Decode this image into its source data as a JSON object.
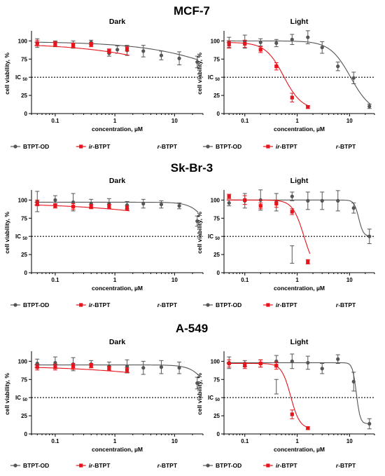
{
  "figure": {
    "rows": [
      {
        "cell_line": "MCF-7"
      },
      {
        "cell_line": "Sk-Br-3"
      },
      {
        "cell_line": "A-549"
      }
    ]
  },
  "colors": {
    "btpt_od": "#555555",
    "ir_btpt": "#e8131b",
    "axis": "#000000"
  },
  "legend": [
    {
      "prefix": "",
      "suffix": "BTPT-OD",
      "color": "#555555",
      "marker": "circle"
    },
    {
      "prefix": "ir-",
      "suffix": "BTPT",
      "color": "#e8131b",
      "marker": "square"
    },
    {
      "prefix": "r-",
      "suffix": "BTPT",
      "color": "#555555",
      "marker": "none"
    }
  ],
  "chart_data": [
    {
      "type": "scatter",
      "cell_line": "MCF-7",
      "title": "Dark",
      "xlabel": "concentration, µM",
      "ylabel": "cell viability, %",
      "x_scale": "log",
      "xlim": [
        0.04,
        30
      ],
      "ylim": [
        0,
        110
      ],
      "xticks": [
        {
          "v": 0.1,
          "label": "0.1"
        },
        {
          "v": 1,
          "label": "1"
        },
        {
          "v": 10,
          "label": "10"
        }
      ],
      "yticks": [
        {
          "v": 100,
          "label": "100"
        },
        {
          "v": 75,
          "label": "75"
        },
        {
          "v": 25,
          "label": "25"
        },
        {
          "v": 0,
          "label": "0"
        }
      ],
      "reference_line": {
        "y": 50,
        "label_main": "IC",
        "label_sub": "50"
      },
      "series": [
        {
          "name": "BTPT-OD",
          "marker": "circle",
          "color": "#555555",
          "points": [
            {
              "x": 0.05,
              "y": 97,
              "err": 6
            },
            {
              "x": 0.1,
              "y": 96,
              "err": 4
            },
            {
              "x": 0.2,
              "y": 95,
              "err": 5
            },
            {
              "x": 0.4,
              "y": 98,
              "err": 3
            },
            {
              "x": 0.8,
              "y": 83,
              "err": 4
            },
            {
              "x": 1.1,
              "y": 88,
              "err": 5
            },
            {
              "x": 1.6,
              "y": 87,
              "err": 7
            },
            {
              "x": 3,
              "y": 86,
              "err": 8
            },
            {
              "x": 6,
              "y": 80,
              "err": 6
            },
            {
              "x": 12,
              "y": 76,
              "err": 9
            },
            {
              "x": 24,
              "y": 71,
              "err": 8
            }
          ],
          "curve": {
            "top": 99,
            "bottom": 0,
            "ic50": 150,
            "hill": 0.6
          }
        },
        {
          "name": "ir-BTPT",
          "marker": "square",
          "color": "#e8131b",
          "points": [
            {
              "x": 0.05,
              "y": 97,
              "err": 4
            },
            {
              "x": 0.1,
              "y": 96,
              "err": 3
            },
            {
              "x": 0.2,
              "y": 94,
              "err": 3
            },
            {
              "x": 0.4,
              "y": 95,
              "err": 3
            },
            {
              "x": 0.8,
              "y": 86,
              "err": 3
            },
            {
              "x": 1.6,
              "y": 89,
              "err": 3
            }
          ],
          "curve": {
            "top": 97,
            "bottom": 0,
            "ic50": 40,
            "hill": 0.5
          }
        }
      ]
    },
    {
      "type": "scatter",
      "cell_line": "MCF-7",
      "title": "Light",
      "xlabel": "concentration, µM",
      "ylabel": "cell viability, %",
      "x_scale": "log",
      "xlim": [
        0.04,
        30
      ],
      "ylim": [
        0,
        110
      ],
      "xticks": [
        {
          "v": 0.1,
          "label": "0.1"
        },
        {
          "v": 1,
          "label": "1"
        },
        {
          "v": 10,
          "label": "10"
        }
      ],
      "yticks": [
        {
          "v": 100,
          "label": "100"
        },
        {
          "v": 75,
          "label": "75"
        },
        {
          "v": 25,
          "label": "25"
        },
        {
          "v": 0,
          "label": "0"
        }
      ],
      "reference_line": {
        "y": 50,
        "label_main": "IC",
        "label_sub": "50"
      },
      "series": [
        {
          "name": "BTPT-OD",
          "marker": "circle",
          "color": "#555555",
          "points": [
            {
              "x": 0.05,
              "y": 98,
              "err": 7
            },
            {
              "x": 0.1,
              "y": 99,
              "err": 9
            },
            {
              "x": 0.2,
              "y": 98,
              "err": 5
            },
            {
              "x": 0.4,
              "y": 97,
              "err": 5
            },
            {
              "x": 0.8,
              "y": 102,
              "err": 7
            },
            {
              "x": 1.6,
              "y": 105,
              "err": 9
            },
            {
              "x": 3,
              "y": 91,
              "err": 8
            },
            {
              "x": 6,
              "y": 65,
              "err": 6
            },
            {
              "x": 12,
              "y": 49,
              "err": 8
            },
            {
              "x": 24,
              "y": 10,
              "err": 3
            }
          ],
          "curve": {
            "top": 100,
            "bottom": 0,
            "ic50": 10.5,
            "hill": 2.2
          }
        },
        {
          "name": "ir-BTPT",
          "marker": "square",
          "color": "#e8131b",
          "points": [
            {
              "x": 0.05,
              "y": 95,
              "err": 5
            },
            {
              "x": 0.1,
              "y": 96,
              "err": 5
            },
            {
              "x": 0.2,
              "y": 88,
              "err": 4
            },
            {
              "x": 0.4,
              "y": 65,
              "err": 5
            },
            {
              "x": 0.8,
              "y": 22,
              "err": 6
            },
            {
              "x": 1.6,
              "y": 9,
              "err": 2
            }
          ],
          "curve": {
            "top": 98,
            "bottom": 5,
            "ic50": 0.55,
            "hill": 2.5
          }
        }
      ]
    },
    {
      "type": "scatter",
      "cell_line": "Sk-Br-3",
      "title": "Dark",
      "xlabel": "concentration, µM",
      "ylabel": "cell viability, %",
      "x_scale": "log",
      "xlim": [
        0.04,
        30
      ],
      "ylim": [
        0,
        110
      ],
      "xticks": [
        {
          "v": 0.1,
          "label": "0.1"
        },
        {
          "v": 1,
          "label": "1"
        },
        {
          "v": 10,
          "label": "10"
        }
      ],
      "yticks": [
        {
          "v": 100,
          "label": "100"
        },
        {
          "v": 75,
          "label": "75"
        },
        {
          "v": 25,
          "label": "25"
        },
        {
          "v": 0,
          "label": "0"
        }
      ],
      "reference_line": {
        "y": 50,
        "label_main": "IC",
        "label_sub": "50"
      },
      "series": [
        {
          "name": "BTPT-OD",
          "marker": "circle",
          "color": "#555555",
          "points": [
            {
              "x": 0.05,
              "y": 98,
              "err": 14
            },
            {
              "x": 0.1,
              "y": 100,
              "err": 6
            },
            {
              "x": 0.2,
              "y": 97,
              "err": 12
            },
            {
              "x": 0.4,
              "y": 95,
              "err": 6
            },
            {
              "x": 0.8,
              "y": 95,
              "err": 7
            },
            {
              "x": 1.6,
              "y": 93,
              "err": 5
            },
            {
              "x": 3,
              "y": 95,
              "err": 6
            },
            {
              "x": 6,
              "y": 94,
              "err": 5
            },
            {
              "x": 12,
              "y": 92,
              "err": 4
            },
            {
              "x": 24,
              "y": 71,
              "err": 7
            }
          ],
          "curve": {
            "top": 97,
            "bottom": 0,
            "ic50": 45,
            "hill": 3
          }
        },
        {
          "name": "ir-BTPT",
          "marker": "square",
          "color": "#e8131b",
          "points": [
            {
              "x": 0.05,
              "y": 96,
              "err": 4
            },
            {
              "x": 0.1,
              "y": 92,
              "err": 3
            },
            {
              "x": 0.2,
              "y": 91,
              "err": 4
            },
            {
              "x": 0.4,
              "y": 91,
              "err": 3
            },
            {
              "x": 0.8,
              "y": 91,
              "err": 3
            },
            {
              "x": 1.6,
              "y": 89,
              "err": 3
            }
          ],
          "curve": {
            "top": 96,
            "bottom": 0,
            "ic50": 300,
            "hill": 0.4
          }
        }
      ]
    },
    {
      "type": "scatter",
      "cell_line": "Sk-Br-3",
      "title": "Light",
      "xlabel": "concentration, µM",
      "ylabel": "cell viability, %",
      "x_scale": "log",
      "xlim": [
        0.04,
        30
      ],
      "ylim": [
        0,
        110
      ],
      "xticks": [
        {
          "v": 0.1,
          "label": "0.1"
        },
        {
          "v": 1,
          "label": "1"
        },
        {
          "v": 10,
          "label": "10"
        }
      ],
      "yticks": [
        {
          "v": 100,
          "label": "100"
        },
        {
          "v": 75,
          "label": "75"
        },
        {
          "v": 25,
          "label": "25"
        },
        {
          "v": 0,
          "label": "0"
        }
      ],
      "reference_line": {
        "y": 50,
        "label_main": "IC",
        "label_sub": "50"
      },
      "series": [
        {
          "name": "BTPT-OD",
          "marker": "circle",
          "color": "#555555",
          "points": [
            {
              "x": 0.05,
              "y": 96,
              "err": 4
            },
            {
              "x": 0.1,
              "y": 99,
              "err": 10
            },
            {
              "x": 0.2,
              "y": 100,
              "err": 14
            },
            {
              "x": 0.4,
              "y": 97,
              "err": 12
            },
            {
              "x": 0.8,
              "y": 105,
              "err": 6
            },
            {
              "x": 1.6,
              "y": 99,
              "err": 12
            },
            {
              "x": 3,
              "y": 99,
              "err": 12
            },
            {
              "x": 6,
              "y": 99,
              "err": 14
            },
            {
              "x": 12,
              "y": 89,
              "err": 7
            },
            {
              "x": 24,
              "y": 50,
              "err": 10
            }
          ],
          "curve": {
            "top": 100,
            "bottom": 50,
            "ic50": 15,
            "hill": 10
          }
        },
        {
          "name": "ir-BTPT",
          "marker": "square",
          "color": "#e8131b",
          "points": [
            {
              "x": 0.05,
              "y": 105,
              "err": 3
            },
            {
              "x": 0.1,
              "y": 100,
              "err": 6
            },
            {
              "x": 0.2,
              "y": 92,
              "err": 4
            },
            {
              "x": 0.4,
              "y": 95,
              "err": 5
            },
            {
              "x": 0.8,
              "y": 84,
              "err": 4
            },
            {
              "x": 1.6,
              "y": 15,
              "err": 3
            }
          ],
          "curve": {
            "top": 100,
            "bottom": 0,
            "ic50": 1.35,
            "hill": 4
          }
        },
        {
          "name": "r-BTPT",
          "marker": "none",
          "color": "#555555",
          "points": [
            {
              "x": 0.8,
              "y": 25,
              "err": 12
            }
          ]
        }
      ]
    },
    {
      "type": "scatter",
      "cell_line": "A-549",
      "title": "Dark",
      "xlabel": "concentration, µM",
      "ylabel": "cell viability, %",
      "x_scale": "log",
      "xlim": [
        0.04,
        30
      ],
      "ylim": [
        0,
        110
      ],
      "xticks": [
        {
          "v": 0.1,
          "label": "0.1"
        },
        {
          "v": 1,
          "label": "1"
        },
        {
          "v": 10,
          "label": "10"
        }
      ],
      "yticks": [
        {
          "v": 100,
          "label": "100"
        },
        {
          "v": 75,
          "label": "75"
        },
        {
          "v": 25,
          "label": "25"
        },
        {
          "v": 0,
          "label": "0"
        }
      ],
      "reference_line": {
        "y": 50,
        "label_main": "IC",
        "label_sub": "50"
      },
      "series": [
        {
          "name": "BTPT-OD",
          "marker": "circle",
          "color": "#555555",
          "points": [
            {
              "x": 0.05,
              "y": 97,
              "err": 6
            },
            {
              "x": 0.1,
              "y": 98,
              "err": 8
            },
            {
              "x": 0.2,
              "y": 96,
              "err": 9
            },
            {
              "x": 0.4,
              "y": 96,
              "err": 5
            },
            {
              "x": 0.8,
              "y": 93,
              "err": 6
            },
            {
              "x": 1.6,
              "y": 93,
              "err": 9
            },
            {
              "x": 3,
              "y": 91,
              "err": 9
            },
            {
              "x": 6,
              "y": 92,
              "err": 9
            },
            {
              "x": 12,
              "y": 91,
              "err": 8
            },
            {
              "x": 24,
              "y": 70,
              "err": 8
            }
          ],
          "curve": {
            "top": 95,
            "bottom": 0,
            "ic50": 45,
            "hill": 3
          }
        },
        {
          "name": "ir-BTPT",
          "marker": "square",
          "color": "#e8131b",
          "points": [
            {
              "x": 0.05,
              "y": 92,
              "err": 4
            },
            {
              "x": 0.1,
              "y": 92,
              "err": 4
            },
            {
              "x": 0.2,
              "y": 93,
              "err": 4
            },
            {
              "x": 0.4,
              "y": 94,
              "err": 3
            },
            {
              "x": 0.8,
              "y": 90,
              "err": 3
            },
            {
              "x": 1.6,
              "y": 88,
              "err": 3
            }
          ],
          "curve": {
            "top": 94,
            "bottom": 0,
            "ic50": 400,
            "hill": 0.4
          }
        }
      ]
    },
    {
      "type": "scatter",
      "cell_line": "A-549",
      "title": "Light",
      "xlabel": "concentration, µM",
      "ylabel": "cell viability, %",
      "x_scale": "log",
      "xlim": [
        0.04,
        30
      ],
      "ylim": [
        0,
        110
      ],
      "xticks": [
        {
          "v": 0.1,
          "label": "0.1"
        },
        {
          "v": 1,
          "label": "1"
        },
        {
          "v": 10,
          "label": "10"
        }
      ],
      "yticks": [
        {
          "v": 100,
          "label": "100"
        },
        {
          "v": 75,
          "label": "75"
        },
        {
          "v": 25,
          "label": "25"
        },
        {
          "v": 0,
          "label": "0"
        }
      ],
      "reference_line": {
        "y": 50,
        "label_main": "IC",
        "label_sub": "50"
      },
      "series": [
        {
          "name": "BTPT-OD",
          "marker": "circle",
          "color": "#555555",
          "points": [
            {
              "x": 0.05,
              "y": 98,
              "err": 8
            },
            {
              "x": 0.1,
              "y": 97,
              "err": 4
            },
            {
              "x": 0.2,
              "y": 97,
              "err": 5
            },
            {
              "x": 0.4,
              "y": 100,
              "err": 8
            },
            {
              "x": 0.8,
              "y": 100,
              "err": 10
            },
            {
              "x": 1.6,
              "y": 98,
              "err": 9
            },
            {
              "x": 3,
              "y": 90,
              "err": 7
            },
            {
              "x": 6,
              "y": 103,
              "err": 6
            },
            {
              "x": 12,
              "y": 72,
              "err": 13
            },
            {
              "x": 24,
              "y": 14,
              "err": 7
            }
          ],
          "curve": {
            "top": 98,
            "bottom": 14,
            "ic50": 13.5,
            "hill": 12
          }
        },
        {
          "name": "ir-BTPT",
          "marker": "square",
          "color": "#e8131b",
          "points": [
            {
              "x": 0.05,
              "y": 97,
              "err": 5
            },
            {
              "x": 0.1,
              "y": 94,
              "err": 4
            },
            {
              "x": 0.2,
              "y": 97,
              "err": 5
            },
            {
              "x": 0.4,
              "y": 94,
              "err": 5
            },
            {
              "x": 0.8,
              "y": 27,
              "err": 6
            },
            {
              "x": 1.6,
              "y": 8,
              "err": 2
            }
          ],
          "curve": {
            "top": 97,
            "bottom": 7,
            "ic50": 0.75,
            "hill": 5
          }
        },
        {
          "name": "r-BTPT",
          "marker": "none",
          "color": "#555555",
          "points": [
            {
              "x": 0.4,
              "y": 65,
              "err": 10
            }
          ]
        }
      ]
    }
  ]
}
